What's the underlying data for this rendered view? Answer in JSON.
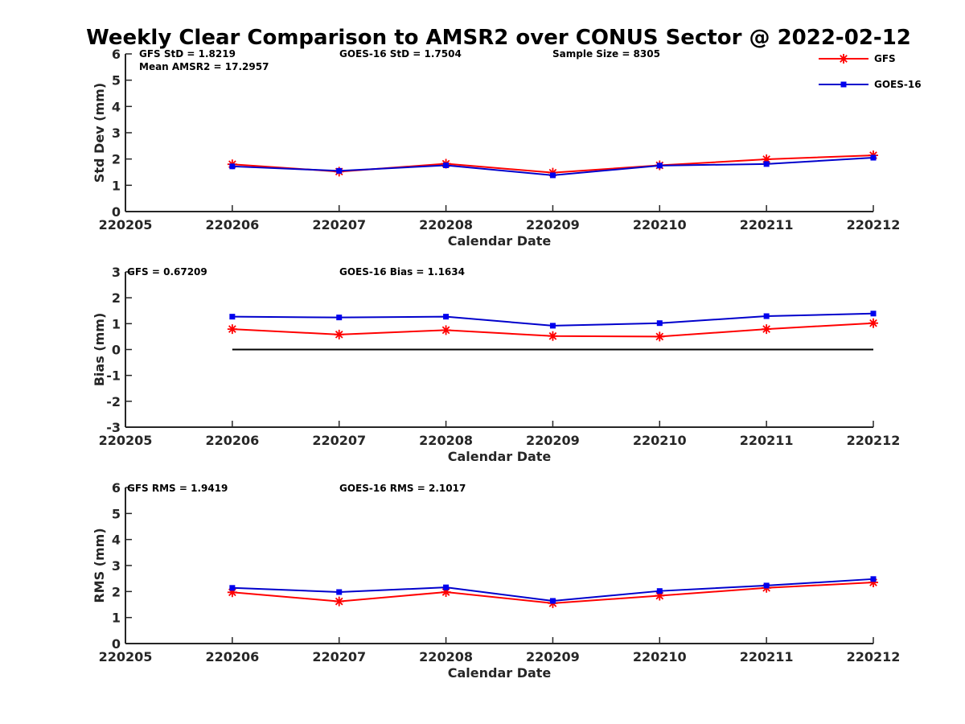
{
  "title": "Weekly Clear Comparison to AMSR2 over CONUS Sector @ 2022-02-12",
  "chart_data": [
    {
      "type": "line",
      "ylabel": "Std Dev (mm)",
      "xlabel": "Calendar Date",
      "x_ticks": [
        "220205",
        "220206",
        "220207",
        "220208",
        "220209",
        "220210",
        "220211",
        "220212"
      ],
      "ylim": [
        0,
        6
      ],
      "y_ticks": [
        "0",
        "1",
        "2",
        "3",
        "4",
        "5",
        "6"
      ],
      "x": [
        1,
        2,
        3,
        4,
        5,
        6,
        7
      ],
      "series": [
        {
          "name": "GFS",
          "color": "#ff0000",
          "marker": "asterisk",
          "values": [
            1.8,
            1.52,
            1.82,
            1.48,
            1.76,
            1.99,
            2.14
          ]
        },
        {
          "name": "GOES-16",
          "color": "#0000cc",
          "marker": "square",
          "values": [
            1.72,
            1.55,
            1.76,
            1.38,
            1.75,
            1.81,
            2.05
          ]
        }
      ],
      "annotations": [
        "GFS StD = 1.8219",
        "GOES-16 StD = 1.7504",
        "Sample Size = 8305",
        "Mean AMSR2 = 17.2957"
      ],
      "legend": {
        "position": "top-right",
        "entries": [
          "GFS",
          "GOES-16"
        ]
      }
    },
    {
      "type": "line",
      "ylabel": "Bias (mm)",
      "xlabel": "Calendar Date",
      "x_ticks": [
        "220205",
        "220206",
        "220207",
        "220208",
        "220209",
        "220210",
        "220211",
        "220212"
      ],
      "ylim": [
        -3,
        3
      ],
      "y_ticks": [
        "-3",
        "-2",
        "-1",
        "0",
        "1",
        "2",
        "3"
      ],
      "x": [
        1,
        2,
        3,
        4,
        5,
        6,
        7
      ],
      "zero_line": true,
      "series": [
        {
          "name": "GFS",
          "color": "#ff0000",
          "marker": "asterisk",
          "values": [
            0.79,
            0.58,
            0.75,
            0.52,
            0.5,
            0.79,
            1.02
          ]
        },
        {
          "name": "GOES-16",
          "color": "#0000cc",
          "marker": "square",
          "values": [
            1.27,
            1.24,
            1.27,
            0.92,
            1.02,
            1.29,
            1.39
          ]
        }
      ],
      "annotations": [
        "GFS = 0.67209",
        "GOES-16 Bias  = 1.1634"
      ]
    },
    {
      "type": "line",
      "ylabel": "RMS (mm)",
      "xlabel": "Calendar Date",
      "x_ticks": [
        "220205",
        "220206",
        "220207",
        "220208",
        "220209",
        "220210",
        "220211",
        "220212"
      ],
      "ylim": [
        0,
        6
      ],
      "y_ticks": [
        "0",
        "1",
        "2",
        "3",
        "4",
        "5",
        "6"
      ],
      "x": [
        1,
        2,
        3,
        4,
        5,
        6,
        7
      ],
      "series": [
        {
          "name": "GFS",
          "color": "#ff0000",
          "marker": "asterisk",
          "values": [
            1.97,
            1.62,
            1.98,
            1.55,
            1.84,
            2.14,
            2.35
          ]
        },
        {
          "name": "GOES-16",
          "color": "#0000cc",
          "marker": "square",
          "values": [
            2.14,
            1.98,
            2.16,
            1.64,
            2.02,
            2.23,
            2.48
          ]
        }
      ],
      "annotations": [
        "GFS RMS = 1.9419",
        "GOES-16 RMS = 2.1017"
      ]
    }
  ]
}
